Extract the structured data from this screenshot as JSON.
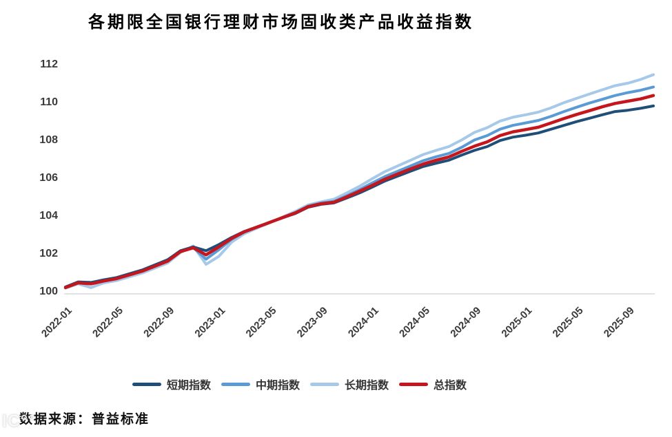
{
  "title": "各期限全国银行理财市场固收类产品收益指数",
  "source_note": "数据来源：普益标准",
  "watermark": "IC°°",
  "chart_data": {
    "type": "line",
    "title": "各期限全国银行理财市场固收类产品收益指数",
    "xlabel": "",
    "ylabel": "",
    "grid": false,
    "legend_position": "bottom",
    "ylim": [
      99.8,
      112.6
    ],
    "yticks": [
      100,
      102,
      104,
      106,
      108,
      110,
      112
    ],
    "x_tick_every": 4,
    "x_tick_labels": [
      "2022-01",
      "2022-05",
      "2022-09",
      "2023-01",
      "2023-05",
      "2023-09",
      "2024-01",
      "2024-05",
      "2024-09",
      "2025-01",
      "2025-05",
      "2025-09"
    ],
    "x": [
      "2022-01",
      "2022-02",
      "2022-03",
      "2022-04",
      "2022-05",
      "2022-06",
      "2022-07",
      "2022-08",
      "2022-09",
      "2022-10",
      "2022-11",
      "2022-12",
      "2023-01",
      "2023-02",
      "2023-03",
      "2023-04",
      "2023-05",
      "2023-06",
      "2023-07",
      "2023-08",
      "2023-09",
      "2023-10",
      "2023-11",
      "2023-12",
      "2024-01",
      "2024-02",
      "2024-03",
      "2024-04",
      "2024-05",
      "2024-06",
      "2024-07",
      "2024-08",
      "2024-09",
      "2024-10",
      "2024-11",
      "2024-12",
      "2025-01",
      "2025-02",
      "2025-03",
      "2025-04",
      "2025-05",
      "2025-06",
      "2025-07",
      "2025-08",
      "2025-09",
      "2025-10",
      "2025-11"
    ],
    "series": [
      {
        "name": "短期指数",
        "color": "#1F4E79",
        "values": [
          100.18,
          100.45,
          100.42,
          100.56,
          100.68,
          100.88,
          101.08,
          101.35,
          101.62,
          102.1,
          102.3,
          102.1,
          102.42,
          102.8,
          103.12,
          103.36,
          103.6,
          103.84,
          104.07,
          104.4,
          104.55,
          104.62,
          104.88,
          105.15,
          105.46,
          105.78,
          106.04,
          106.3,
          106.55,
          106.72,
          106.88,
          107.15,
          107.4,
          107.6,
          107.92,
          108.1,
          108.2,
          108.32,
          108.52,
          108.72,
          108.92,
          109.1,
          109.28,
          109.45,
          109.52,
          109.62,
          109.75
        ]
      },
      {
        "name": "中期指数",
        "color": "#5B9BD5",
        "values": [
          100.16,
          100.42,
          100.37,
          100.52,
          100.64,
          100.84,
          101.04,
          101.3,
          101.57,
          102.06,
          102.26,
          101.65,
          102.15,
          102.7,
          103.08,
          103.34,
          103.6,
          103.86,
          104.12,
          104.46,
          104.62,
          104.7,
          105.0,
          105.32,
          105.68,
          106.02,
          106.3,
          106.58,
          106.86,
          107.06,
          107.24,
          107.56,
          107.95,
          108.18,
          108.52,
          108.72,
          108.85,
          108.98,
          109.2,
          109.45,
          109.68,
          109.9,
          110.1,
          110.3,
          110.45,
          110.58,
          110.75
        ]
      },
      {
        "name": "长期指数",
        "color": "#A6C9E9",
        "values": [
          100.12,
          100.35,
          100.15,
          100.4,
          100.52,
          100.72,
          100.92,
          101.18,
          101.45,
          102.0,
          102.35,
          101.38,
          101.8,
          102.55,
          103.0,
          103.3,
          103.58,
          103.88,
          104.18,
          104.52,
          104.68,
          104.82,
          105.15,
          105.5,
          105.9,
          106.28,
          106.58,
          106.88,
          107.18,
          107.4,
          107.6,
          107.95,
          108.35,
          108.6,
          108.95,
          109.15,
          109.28,
          109.42,
          109.65,
          109.92,
          110.15,
          110.38,
          110.6,
          110.82,
          110.95,
          111.15,
          111.4
        ]
      },
      {
        "name": "总指数",
        "color": "#C4161C",
        "values": [
          100.15,
          100.4,
          100.35,
          100.5,
          100.62,
          100.82,
          101.02,
          101.28,
          101.55,
          102.05,
          102.25,
          101.88,
          102.3,
          102.75,
          103.1,
          103.35,
          103.6,
          103.85,
          104.1,
          104.43,
          104.58,
          104.66,
          104.94,
          105.24,
          105.55,
          105.88,
          106.15,
          106.42,
          106.68,
          106.88,
          107.05,
          107.35,
          107.62,
          107.85,
          108.18,
          108.38,
          108.5,
          108.62,
          108.85,
          109.08,
          109.3,
          109.5,
          109.7,
          109.88,
          110.0,
          110.12,
          110.3
        ]
      }
    ],
    "axis_color": "#d9d9d9",
    "tick_label_color": "#3a3a3a"
  }
}
